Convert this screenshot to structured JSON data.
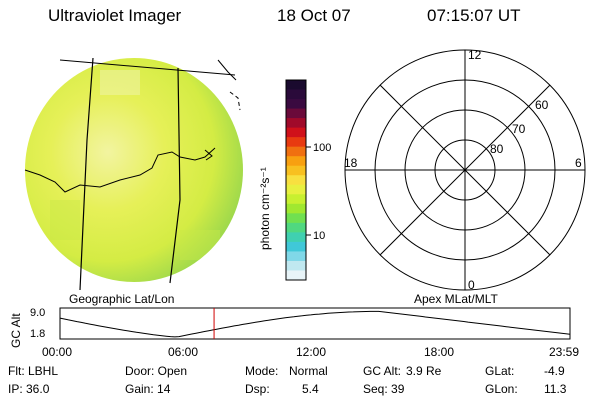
{
  "header": {
    "instrument": "Ultraviolet Imager",
    "date": "18 Oct 07",
    "time": "07:15:07 UT"
  },
  "colorbar": {
    "label": "photon cm⁻²s⁻¹",
    "ticks": [
      "100",
      "10"
    ],
    "colors": [
      "#1a0a2e",
      "#2a0a3a",
      "#3a0a40",
      "#6a0a3a",
      "#a00a2a",
      "#d0101a",
      "#e83a10",
      "#f07010",
      "#f8a010",
      "#f8c020",
      "#f8e040",
      "#e8f040",
      "#c8f030",
      "#a0e830",
      "#70e050",
      "#50d880",
      "#40d0b0",
      "#40c8d8",
      "#80d8e8",
      "#c0e8f0",
      "#e8f4f8"
    ]
  },
  "left_panel": {
    "label": "Geographic Lat/Lon"
  },
  "right_panel": {
    "label": "Apex MLat/MLT",
    "mlt_labels": {
      "top": "12",
      "bottom": "0",
      "left": "18",
      "right": "6"
    },
    "lat_labels": [
      "60",
      "70",
      "80"
    ]
  },
  "altitude_plot": {
    "ylabel": "GC Alt",
    "yticks": [
      "9.0",
      "1.8"
    ],
    "xticks": [
      "00:00",
      "06:00",
      "12:00",
      "18:00",
      "23:59"
    ],
    "marker_hour": 7.25
  },
  "info": {
    "filter": "Flt: LBHL",
    "ip": "IP: 36.0",
    "door": "Door: Open",
    "gain": "Gain: 14",
    "mode_label": "Mode:",
    "mode_value": "Normal",
    "dsp_label": "Dsp:",
    "dsp_value": "5.4",
    "gc_alt_label": "GC Alt:",
    "gc_alt_value": "3.9 Re",
    "seq": "Seq: 39",
    "glat_label": "GLat:",
    "glat_value": "-4.9",
    "glon_label": "GLon:",
    "glon_value": "11.3"
  }
}
